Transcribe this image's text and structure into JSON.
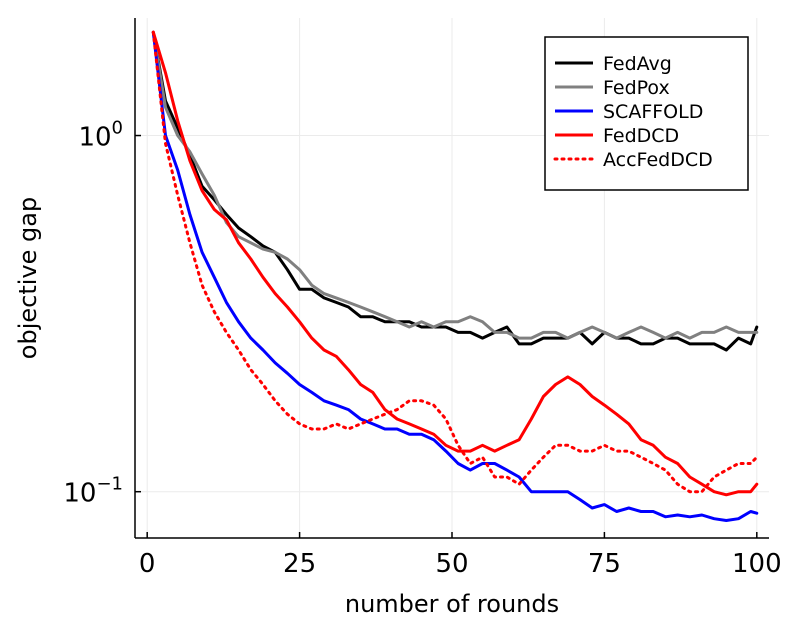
{
  "chart_data": {
    "type": "line",
    "title": "",
    "xlabel": "number of rounds",
    "ylabel": "objective gap",
    "xlim": [
      -2,
      102
    ],
    "ylim_log10": [
      -1.13,
      0.33
    ],
    "yscale": "log",
    "grid": true,
    "legend_position": "top-right",
    "xticks": [
      {
        "value": 0,
        "label": "0"
      },
      {
        "value": 25,
        "label": "25"
      },
      {
        "value": 50,
        "label": "50"
      },
      {
        "value": 75,
        "label": "75"
      },
      {
        "value": 100,
        "label": "100"
      }
    ],
    "yticks": [
      {
        "value": 1.0,
        "base": "10",
        "exp": "0"
      },
      {
        "value": 0.1,
        "base": "10",
        "exp": "−1"
      }
    ],
    "series": [
      {
        "name": "FedAvg",
        "color": "#000000",
        "style": "solid",
        "x": [
          1,
          3,
          5,
          7,
          9,
          11,
          13,
          15,
          17,
          19,
          21,
          23,
          25,
          27,
          29,
          31,
          33,
          35,
          37,
          39,
          41,
          43,
          45,
          47,
          49,
          51,
          53,
          55,
          57,
          59,
          61,
          63,
          65,
          67,
          69,
          71,
          73,
          75,
          77,
          79,
          81,
          83,
          85,
          87,
          89,
          91,
          93,
          95,
          97,
          99,
          100
        ],
        "y": [
          1.95,
          1.25,
          1.05,
          0.88,
          0.72,
          0.66,
          0.6,
          0.55,
          0.52,
          0.49,
          0.47,
          0.42,
          0.37,
          0.37,
          0.35,
          0.34,
          0.33,
          0.31,
          0.31,
          0.3,
          0.3,
          0.3,
          0.29,
          0.29,
          0.29,
          0.28,
          0.28,
          0.27,
          0.28,
          0.29,
          0.26,
          0.26,
          0.27,
          0.27,
          0.27,
          0.28,
          0.26,
          0.28,
          0.27,
          0.27,
          0.26,
          0.26,
          0.27,
          0.27,
          0.26,
          0.26,
          0.26,
          0.25,
          0.27,
          0.26,
          0.29
        ]
      },
      {
        "name": "FedPox",
        "color": "#808080",
        "style": "solid",
        "x": [
          1,
          3,
          5,
          7,
          9,
          11,
          13,
          15,
          17,
          19,
          21,
          23,
          25,
          27,
          29,
          31,
          33,
          35,
          37,
          39,
          41,
          43,
          45,
          47,
          49,
          51,
          53,
          55,
          57,
          59,
          61,
          63,
          65,
          67,
          69,
          71,
          73,
          75,
          77,
          79,
          81,
          83,
          85,
          87,
          89,
          91,
          93,
          95,
          97,
          99,
          100
        ],
        "y": [
          1.95,
          1.2,
          1.0,
          0.9,
          0.78,
          0.68,
          0.57,
          0.52,
          0.5,
          0.48,
          0.47,
          0.45,
          0.42,
          0.38,
          0.36,
          0.35,
          0.34,
          0.33,
          0.32,
          0.31,
          0.3,
          0.29,
          0.3,
          0.29,
          0.3,
          0.3,
          0.31,
          0.3,
          0.28,
          0.28,
          0.27,
          0.27,
          0.28,
          0.28,
          0.27,
          0.28,
          0.29,
          0.28,
          0.27,
          0.28,
          0.29,
          0.28,
          0.27,
          0.28,
          0.27,
          0.28,
          0.28,
          0.29,
          0.28,
          0.28,
          0.28
        ]
      },
      {
        "name": "SCAFFOLD",
        "color": "#0000ff",
        "style": "solid",
        "x": [
          1,
          3,
          5,
          7,
          9,
          11,
          13,
          15,
          17,
          19,
          21,
          23,
          25,
          27,
          29,
          31,
          33,
          35,
          37,
          39,
          41,
          43,
          45,
          47,
          49,
          51,
          53,
          55,
          57,
          59,
          61,
          63,
          65,
          67,
          69,
          71,
          73,
          75,
          77,
          79,
          81,
          83,
          85,
          87,
          89,
          91,
          93,
          95,
          97,
          99,
          100
        ],
        "y": [
          1.95,
          1.0,
          0.8,
          0.6,
          0.47,
          0.4,
          0.34,
          0.3,
          0.27,
          0.25,
          0.23,
          0.215,
          0.2,
          0.19,
          0.18,
          0.175,
          0.17,
          0.16,
          0.155,
          0.15,
          0.15,
          0.145,
          0.145,
          0.14,
          0.13,
          0.12,
          0.115,
          0.12,
          0.12,
          0.115,
          0.11,
          0.1,
          0.1,
          0.1,
          0.1,
          0.095,
          0.09,
          0.092,
          0.088,
          0.09,
          0.088,
          0.088,
          0.085,
          0.086,
          0.085,
          0.086,
          0.084,
          0.083,
          0.084,
          0.088,
          0.087
        ]
      },
      {
        "name": "FedDCD",
        "color": "#ff0000",
        "style": "solid",
        "x": [
          1,
          3,
          5,
          7,
          9,
          11,
          13,
          15,
          17,
          19,
          21,
          23,
          25,
          27,
          29,
          31,
          33,
          35,
          37,
          39,
          41,
          43,
          45,
          47,
          49,
          51,
          53,
          55,
          57,
          59,
          61,
          63,
          65,
          67,
          69,
          71,
          73,
          75,
          77,
          79,
          81,
          83,
          85,
          87,
          89,
          91,
          93,
          95,
          97,
          99,
          100
        ],
        "y": [
          1.95,
          1.5,
          1.1,
          0.85,
          0.7,
          0.62,
          0.58,
          0.5,
          0.45,
          0.4,
          0.36,
          0.33,
          0.3,
          0.27,
          0.25,
          0.24,
          0.22,
          0.2,
          0.19,
          0.17,
          0.16,
          0.155,
          0.15,
          0.145,
          0.135,
          0.13,
          0.13,
          0.135,
          0.13,
          0.135,
          0.14,
          0.16,
          0.185,
          0.2,
          0.21,
          0.2,
          0.185,
          0.175,
          0.165,
          0.155,
          0.14,
          0.135,
          0.125,
          0.12,
          0.11,
          0.105,
          0.1,
          0.098,
          0.1,
          0.1,
          0.105
        ]
      },
      {
        "name": "AccFedDCD",
        "color": "#ff0000",
        "style": "dotted",
        "x": [
          1,
          3,
          5,
          7,
          9,
          11,
          13,
          15,
          17,
          19,
          21,
          23,
          25,
          27,
          29,
          31,
          33,
          35,
          37,
          39,
          41,
          43,
          45,
          47,
          49,
          51,
          53,
          55,
          57,
          59,
          61,
          63,
          65,
          67,
          69,
          71,
          73,
          75,
          77,
          79,
          81,
          83,
          85,
          87,
          89,
          91,
          93,
          95,
          97,
          99,
          100
        ],
        "y": [
          1.95,
          0.95,
          0.68,
          0.5,
          0.38,
          0.32,
          0.28,
          0.25,
          0.22,
          0.2,
          0.18,
          0.165,
          0.155,
          0.15,
          0.15,
          0.155,
          0.15,
          0.155,
          0.16,
          0.165,
          0.17,
          0.18,
          0.18,
          0.175,
          0.16,
          0.135,
          0.12,
          0.125,
          0.11,
          0.11,
          0.105,
          0.115,
          0.125,
          0.135,
          0.135,
          0.13,
          0.13,
          0.135,
          0.13,
          0.13,
          0.125,
          0.12,
          0.115,
          0.105,
          0.1,
          0.1,
          0.11,
          0.115,
          0.12,
          0.12,
          0.125
        ]
      }
    ]
  }
}
